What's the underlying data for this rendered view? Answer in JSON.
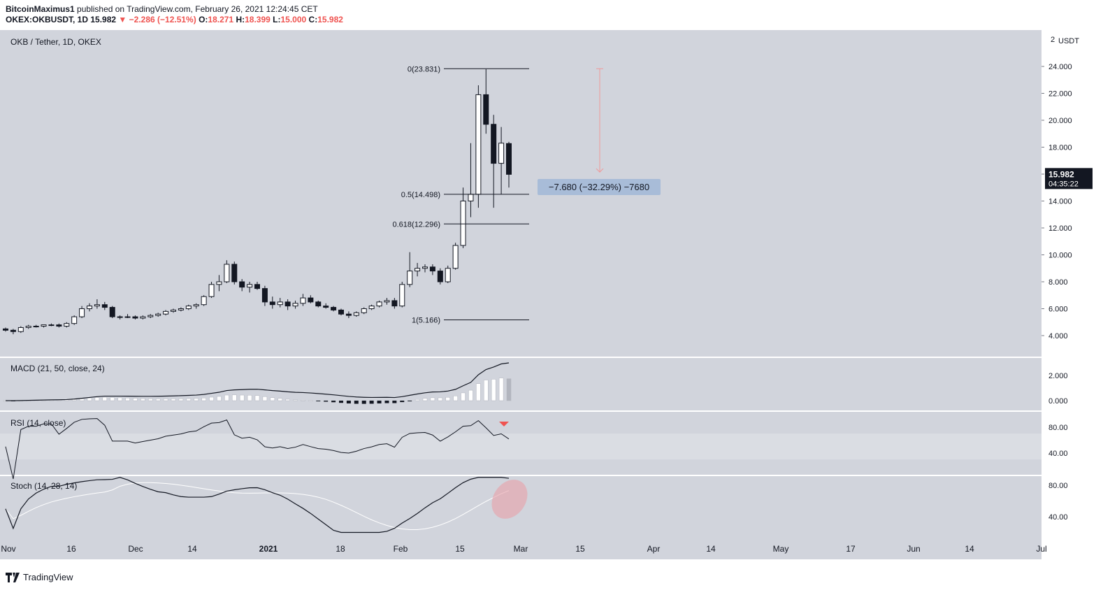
{
  "header": {
    "author": "BitcoinMaximus1",
    "published": "published on TradingView.com, February 26, 2021 12:24:45 CET",
    "symbol": "OKEX:OKBUSDT, 1D",
    "last": "15.982",
    "change": "−2.286 (−12.51%)",
    "o_label": "O:",
    "o": "18.271",
    "h_label": "H:",
    "h": "18.399",
    "l_label": "L:",
    "l": "15.000",
    "c_label": "C:",
    "c": "15.982"
  },
  "footer": {
    "brand": "TradingView"
  },
  "colors": {
    "pane_bg": "#d1d4dc",
    "rsi_band": "#dadde3",
    "candle_up": "#ffffff",
    "candle_down": "#131722",
    "arrow": "#ef9a9a",
    "label_bg": "#a8bcd8",
    "ellipse": "#e8a0a8"
  },
  "chart_data": {
    "type": "candlestick",
    "title": "OKB / Tether, 1D, OKEX",
    "currency": "USDT",
    "scale_marker": "2",
    "last_price_label": "15.982",
    "countdown_label": "04:35:22",
    "y_ticks": [
      "24.000",
      "22.000",
      "20.000",
      "18.000",
      "16.000",
      "14.000",
      "12.000",
      "10.000",
      "8.000",
      "6.000",
      "4.000"
    ],
    "y_tick_values": [
      24,
      22,
      20,
      18,
      16,
      14,
      12,
      10,
      8,
      6,
      4
    ],
    "x_ticks": [
      "Nov",
      "16",
      "Dec",
      "14",
      "2021",
      "18",
      "Feb",
      "15",
      "Mar",
      "15",
      "Apr",
      "14",
      "May",
      "17",
      "Jun",
      "14",
      "Jul"
    ],
    "fib_levels": [
      {
        "label": "0(23.831)",
        "value": 23.831
      },
      {
        "label": "0.5(14.498)",
        "value": 14.498
      },
      {
        "label": "0.618(12.296)",
        "value": 12.296
      },
      {
        "label": "1(5.166)",
        "value": 5.166
      }
    ],
    "measure_label": "−7.680 (−32.29%) −7680",
    "candles": [
      [
        4.5,
        4.6,
        4.3,
        4.4
      ],
      [
        4.4,
        4.5,
        4.1,
        4.3
      ],
      [
        4.3,
        4.7,
        4.2,
        4.6
      ],
      [
        4.6,
        4.8,
        4.5,
        4.7
      ],
      [
        4.7,
        4.8,
        4.6,
        4.7
      ],
      [
        4.7,
        4.8,
        4.6,
        4.8
      ],
      [
        4.8,
        4.9,
        4.7,
        4.8
      ],
      [
        4.8,
        4.9,
        4.6,
        4.7
      ],
      [
        4.7,
        5.0,
        4.6,
        4.9
      ],
      [
        4.9,
        5.5,
        4.8,
        5.4
      ],
      [
        5.4,
        6.2,
        5.3,
        6.0
      ],
      [
        6.0,
        6.4,
        5.8,
        6.2
      ],
      [
        6.2,
        6.7,
        6.0,
        6.3
      ],
      [
        6.3,
        6.5,
        5.9,
        6.1
      ],
      [
        6.1,
        6.2,
        5.3,
        5.4
      ],
      [
        5.4,
        5.5,
        5.2,
        5.4
      ],
      [
        5.4,
        5.6,
        5.3,
        5.4
      ],
      [
        5.4,
        5.5,
        5.2,
        5.3
      ],
      [
        5.3,
        5.5,
        5.2,
        5.4
      ],
      [
        5.4,
        5.6,
        5.3,
        5.5
      ],
      [
        5.5,
        5.7,
        5.4,
        5.6
      ],
      [
        5.6,
        5.9,
        5.5,
        5.8
      ],
      [
        5.8,
        6.0,
        5.7,
        5.9
      ],
      [
        5.9,
        6.1,
        5.8,
        6.0
      ],
      [
        6.0,
        6.3,
        5.9,
        6.2
      ],
      [
        6.2,
        6.4,
        6.0,
        6.3
      ],
      [
        6.3,
        7.0,
        6.2,
        6.9
      ],
      [
        6.9,
        8.0,
        6.8,
        7.8
      ],
      [
        7.8,
        8.5,
        7.3,
        8.0
      ],
      [
        8.0,
        9.6,
        7.9,
        9.3
      ],
      [
        9.3,
        9.5,
        7.8,
        8.0
      ],
      [
        8.0,
        8.2,
        7.3,
        7.6
      ],
      [
        7.6,
        8.0,
        7.2,
        7.8
      ],
      [
        7.8,
        8.0,
        7.4,
        7.5
      ],
      [
        7.5,
        7.7,
        6.2,
        6.5
      ],
      [
        6.5,
        6.9,
        6.0,
        6.3
      ],
      [
        6.3,
        6.8,
        6.1,
        6.5
      ],
      [
        6.5,
        6.7,
        5.9,
        6.2
      ],
      [
        6.2,
        6.6,
        6.0,
        6.4
      ],
      [
        6.4,
        7.1,
        6.2,
        6.8
      ],
      [
        6.8,
        7.0,
        6.4,
        6.5
      ],
      [
        6.5,
        6.6,
        6.1,
        6.2
      ],
      [
        6.2,
        6.4,
        6.0,
        6.1
      ],
      [
        6.1,
        6.2,
        5.8,
        5.9
      ],
      [
        5.9,
        6.0,
        5.5,
        5.6
      ],
      [
        5.6,
        5.8,
        5.3,
        5.5
      ],
      [
        5.5,
        5.8,
        5.4,
        5.7
      ],
      [
        5.7,
        6.1,
        5.6,
        6.0
      ],
      [
        6.0,
        6.3,
        5.9,
        6.2
      ],
      [
        6.2,
        6.6,
        6.1,
        6.5
      ],
      [
        6.5,
        6.8,
        6.3,
        6.6
      ],
      [
        6.6,
        6.8,
        6.0,
        6.2
      ],
      [
        6.2,
        8.0,
        6.1,
        7.8
      ],
      [
        7.8,
        10.2,
        7.6,
        8.8
      ],
      [
        8.8,
        9.4,
        8.4,
        9.0
      ],
      [
        9.0,
        9.3,
        8.7,
        9.1
      ],
      [
        9.1,
        9.3,
        8.5,
        8.8
      ],
      [
        8.8,
        9.0,
        7.8,
        8.0
      ],
      [
        8.0,
        9.2,
        7.9,
        9.0
      ],
      [
        9.0,
        10.9,
        8.9,
        10.7
      ],
      [
        10.7,
        15.0,
        10.5,
        14.0
      ],
      [
        14.0,
        18.3,
        12.8,
        14.5
      ],
      [
        14.5,
        22.6,
        13.5,
        21.9
      ],
      [
        21.9,
        23.8,
        19.0,
        19.7
      ],
      [
        19.7,
        20.4,
        13.5,
        16.8
      ],
      [
        16.8,
        19.5,
        14.5,
        18.3
      ],
      [
        18.271,
        18.399,
        15.0,
        15.982
      ]
    ],
    "macd": {
      "label": "MACD (21, 50, close, 24)",
      "y_ticks": [
        "2.000",
        "0.000"
      ],
      "y_tick_values": [
        2,
        0
      ]
    },
    "rsi": {
      "label": "RSI (14, close)",
      "y_ticks": [
        "80.00",
        "40.00"
      ],
      "y_tick_values": [
        80,
        40
      ],
      "band": [
        70,
        30
      ]
    },
    "stoch": {
      "label": "Stoch (14, 28, 14)",
      "y_ticks": [
        "80.00",
        "40.00"
      ],
      "y_tick_values": [
        80,
        40
      ]
    }
  }
}
